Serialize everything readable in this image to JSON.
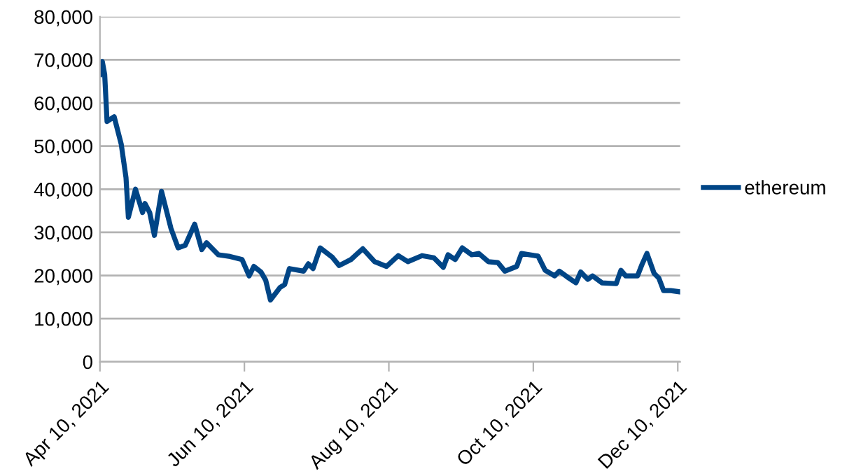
{
  "chart_data": {
    "type": "line",
    "x": [
      "2021-04-10",
      "2021-04-11",
      "2021-04-12",
      "2021-04-13",
      "2021-04-16",
      "2021-04-19",
      "2021-04-21",
      "2021-04-22",
      "2021-04-25",
      "2021-04-28",
      "2021-04-29",
      "2021-05-01",
      "2021-05-03",
      "2021-05-06",
      "2021-05-10",
      "2021-05-13",
      "2021-05-16",
      "2021-05-20",
      "2021-05-23",
      "2021-05-25",
      "2021-05-30",
      "2021-06-04",
      "2021-06-09",
      "2021-06-12",
      "2021-06-14",
      "2021-06-17",
      "2021-06-19",
      "2021-06-21",
      "2021-06-25",
      "2021-06-27",
      "2021-06-29",
      "2021-07-05",
      "2021-07-07",
      "2021-07-09",
      "2021-07-12",
      "2021-07-17",
      "2021-07-20",
      "2021-07-25",
      "2021-07-30",
      "2021-08-04",
      "2021-08-05",
      "2021-08-09",
      "2021-08-14",
      "2021-08-18",
      "2021-08-24",
      "2021-08-29",
      "2021-09-02",
      "2021-09-04",
      "2021-09-07",
      "2021-09-10",
      "2021-09-14",
      "2021-09-17",
      "2021-09-21",
      "2021-09-25",
      "2021-09-28",
      "2021-10-03",
      "2021-10-05",
      "2021-10-12",
      "2021-10-15",
      "2021-10-19",
      "2021-10-21",
      "2021-10-25",
      "2021-10-28",
      "2021-10-30",
      "2021-11-02",
      "2021-11-04",
      "2021-11-08",
      "2021-11-14",
      "2021-11-16",
      "2021-11-18",
      "2021-11-23",
      "2021-11-25",
      "2021-11-27",
      "2021-11-30",
      "2021-12-02",
      "2021-12-04",
      "2021-12-07",
      "2021-12-11"
    ],
    "series": [
      {
        "name": "ethereum",
        "color": "#004586",
        "values": [
          66600,
          69600,
          66600,
          55700,
          56800,
          50400,
          42700,
          33500,
          40000,
          34600,
          36700,
          34600,
          29300,
          39500,
          30900,
          26400,
          27000,
          31900,
          26000,
          27600,
          24800,
          24400,
          23700,
          19900,
          22100,
          20800,
          18900,
          14300,
          17200,
          17900,
          21600,
          21000,
          22700,
          21600,
          26400,
          24300,
          22300,
          23700,
          26200,
          23200,
          23000,
          22100,
          24600,
          23200,
          24600,
          24100,
          21900,
          24800,
          23700,
          26400,
          24800,
          25100,
          23200,
          23000,
          21000,
          22100,
          25100,
          24500,
          21200,
          19900,
          21000,
          19400,
          18300,
          20800,
          19100,
          19900,
          18300,
          18100,
          21200,
          19900,
          19900,
          22700,
          25100,
          20500,
          19400,
          16500,
          16500,
          16200
        ]
      }
    ],
    "xlim": [
      "2021-04-10",
      "2021-12-11"
    ],
    "xticks": [
      {
        "value": "2021-04-10",
        "label": "Apr 10, 2021"
      },
      {
        "value": "2021-06-10",
        "label": "Jun 10, 2021"
      },
      {
        "value": "2021-08-10",
        "label": "Aug 10, 2021"
      },
      {
        "value": "2021-10-10",
        "label": "Oct 10, 2021"
      },
      {
        "value": "2021-12-10",
        "label": "Dec 10, 2021"
      }
    ],
    "ylim": [
      0,
      80000
    ],
    "yticks": [
      {
        "value": 0,
        "label": "0"
      },
      {
        "value": 10000,
        "label": "10,000"
      },
      {
        "value": 20000,
        "label": "20,000"
      },
      {
        "value": 30000,
        "label": "30,000"
      },
      {
        "value": 40000,
        "label": "40,000"
      },
      {
        "value": 50000,
        "label": "50,000"
      },
      {
        "value": 60000,
        "label": "60,000"
      },
      {
        "value": 70000,
        "label": "70,000"
      },
      {
        "value": 80000,
        "label": "80,000"
      }
    ],
    "grid": "y",
    "legend": "right",
    "marker": "none",
    "line_style": "solid"
  }
}
